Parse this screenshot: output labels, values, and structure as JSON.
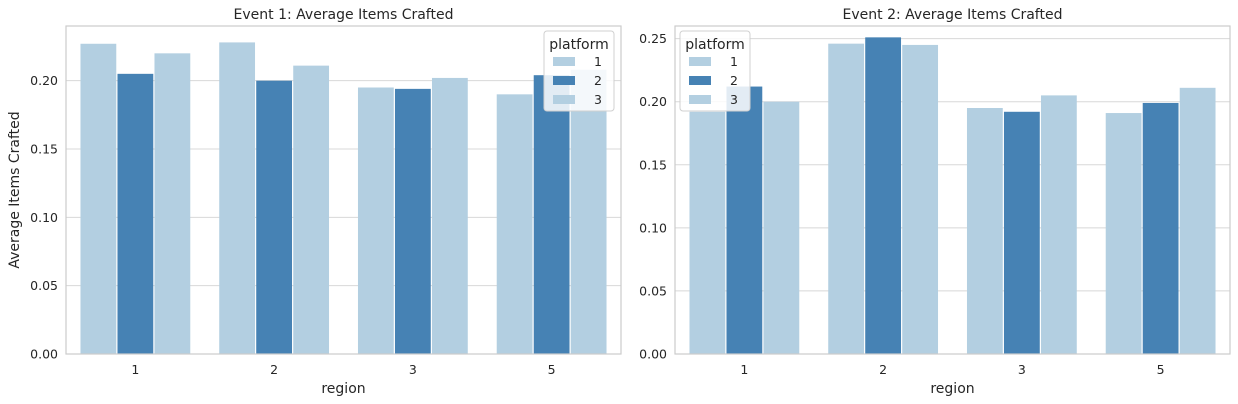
{
  "colors": {
    "light": "#b3cfe1",
    "dark": "#4682b4",
    "grid": "#d8d8d8",
    "frame": "#cccccc"
  },
  "chart_data": [
    {
      "type": "bar",
      "title": "Event 1: Average Items Crafted",
      "xlabel": "region",
      "ylabel": "Average Items Crafted",
      "categories": [
        "1",
        "2",
        "3",
        "5"
      ],
      "ylim": [
        0,
        0.24
      ],
      "yticks": [
        0.0,
        0.05,
        0.1,
        0.15,
        0.2
      ],
      "ytick_labels": [
        "0.00",
        "0.05",
        "0.10",
        "0.15",
        "0.20"
      ],
      "grid": true,
      "legend": {
        "title": "platform",
        "position": "top-right"
      },
      "series": [
        {
          "name": "1",
          "color": "#b3cfe1",
          "values": [
            0.227,
            0.228,
            0.195,
            0.19
          ]
        },
        {
          "name": "2",
          "color": "#4682b4",
          "values": [
            0.205,
            0.2,
            0.194,
            0.204
          ]
        },
        {
          "name": "3",
          "color": "#b3cfe1",
          "values": [
            0.22,
            0.211,
            0.202,
            0.208
          ]
        }
      ]
    },
    {
      "type": "bar",
      "title": "Event 2: Average Items Crafted",
      "xlabel": "region",
      "ylabel": "",
      "categories": [
        "1",
        "2",
        "3",
        "5"
      ],
      "ylim": [
        0,
        0.26
      ],
      "yticks": [
        0.0,
        0.05,
        0.1,
        0.15,
        0.2,
        0.25
      ],
      "ytick_labels": [
        "0.00",
        "0.05",
        "0.10",
        "0.15",
        "0.20",
        "0.25"
      ],
      "grid": true,
      "legend": {
        "title": "platform",
        "position": "top-left"
      },
      "series": [
        {
          "name": "1",
          "color": "#b3cfe1",
          "values": [
            0.192,
            0.246,
            0.195,
            0.191
          ]
        },
        {
          "name": "2",
          "color": "#4682b4",
          "values": [
            0.212,
            0.251,
            0.192,
            0.199
          ]
        },
        {
          "name": "3",
          "color": "#b3cfe1",
          "values": [
            0.2,
            0.245,
            0.205,
            0.211
          ]
        }
      ]
    }
  ]
}
